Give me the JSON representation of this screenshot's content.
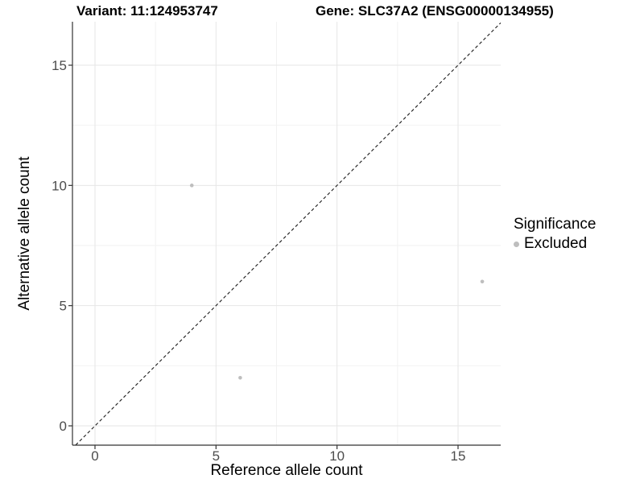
{
  "header": {
    "variant_title": "Variant: 11:124953747",
    "gene_title": "Gene: SLC37A2 (ENSG00000134955)"
  },
  "chart_data": {
    "type": "scatter",
    "title_left": "Variant: 11:124953747",
    "title_right": "Gene: SLC37A2 (ENSG00000134955)",
    "xlabel": "Reference allele count",
    "ylabel": "Alternative allele count",
    "xlim": [
      -0.93,
      16.76
    ],
    "ylim": [
      -0.8,
      16.81
    ],
    "x_ticks": [
      0,
      5,
      10,
      15
    ],
    "y_ticks": [
      0,
      5,
      10,
      15
    ],
    "grid": "major-and-minor",
    "points": [
      {
        "x": 4,
        "y": 10,
        "significance": "Excluded"
      },
      {
        "x": 6,
        "y": 2,
        "significance": "Excluded"
      },
      {
        "x": 16,
        "y": 6,
        "significance": "Excluded"
      }
    ],
    "identity_line": {
      "slope": 1,
      "intercept": 0,
      "style": "dashed"
    },
    "legend": {
      "title": "Significance",
      "position": "right",
      "entries": [
        {
          "label": "Excluded",
          "color": "#bebebe"
        }
      ]
    },
    "colors": {
      "point": "#bebebe",
      "grid_major": "#e6e6e6",
      "grid_minor": "#f2f2f2",
      "axis": "#333333",
      "tick_text": "#4d4d4d",
      "identity_line": "#1a1a1a",
      "background": "#ffffff"
    }
  }
}
